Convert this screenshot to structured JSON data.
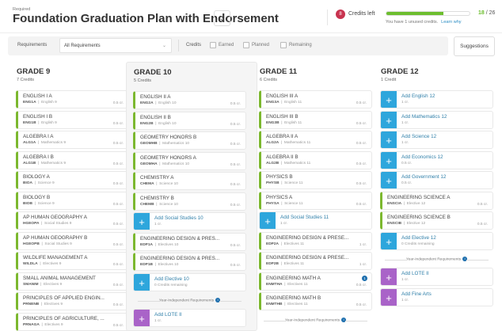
{
  "header": {
    "required_label": "Required",
    "title": "Foundation Graduation Plan with Endorsement",
    "credits_left_count": "8",
    "credits_left_label": "Credits left",
    "progress_earned": "18",
    "progress_total": "/ 26",
    "progress_percent": 69,
    "unused_text": "You have 1 unused credits.",
    "learn_why": "Learn why"
  },
  "filter": {
    "requirements_label": "Requirements",
    "requirements_value": "All Requirements",
    "credits_label": "Credits",
    "earned": "Earned",
    "planned": "Planned",
    "remaining": "Remaining",
    "suggestions": "Suggestions"
  },
  "colors": {
    "green": "#7cb82f",
    "blue": "#2ea6dc",
    "purple": "#a963c8",
    "badge": "#c8334f"
  },
  "grades": [
    {
      "title": "GRADE 9",
      "credits": "7 Credits",
      "items": [
        {
          "type": "course",
          "name": "ENGLISH I A",
          "code": "ENG1A",
          "subject": "English 9",
          "cr": "0.5 cr."
        },
        {
          "type": "course",
          "name": "ENGLISH I B",
          "code": "ENG1B",
          "subject": "English 9",
          "cr": "0.5 cr."
        },
        {
          "type": "course",
          "name": "ALGEBRA I A",
          "code": "ALG1A",
          "subject": "Mathematics 9",
          "cr": "0.5 cr."
        },
        {
          "type": "course",
          "name": "ALGEBRA I B",
          "code": "ALG1B",
          "subject": "Mathematics 9",
          "cr": "0.5 cr."
        },
        {
          "type": "course",
          "name": "BIOLOGY A",
          "code": "BIOA",
          "subject": "Science 9",
          "cr": "0.5 cr."
        },
        {
          "type": "course",
          "name": "BIOLOGY B",
          "code": "BIOB",
          "subject": "Science 9",
          "cr": "0.5 cr."
        },
        {
          "type": "course",
          "name": "AP HUMAN GEOGRAPHY A",
          "code": "HGEOPA",
          "subject": "Social Studies 9",
          "cr": "0.5 cr."
        },
        {
          "type": "course",
          "name": "AP HUMAN GEOGRAPHY B",
          "code": "HGEOPB",
          "subject": "Social Studies 9",
          "cr": "0.5 cr."
        },
        {
          "type": "course",
          "name": "WILDLIFE MANAGEMENT A",
          "code": "WILDLA",
          "subject": "Electives 9",
          "cr": "0.5 cr."
        },
        {
          "type": "course",
          "name": "SMALL ANIMAL MANAGEMENT",
          "code": "SMANIM",
          "subject": "Electives 9",
          "cr": "0.5 cr."
        },
        {
          "type": "course",
          "name": "PRINCIPLES OF APPLIED ENGIN...",
          "code": "PRNENB",
          "subject": "Electives 9",
          "cr": "0.5 cr."
        },
        {
          "type": "course",
          "name": "PRINCIPLES OF AGRICULTURE, ...",
          "code": "PRNAGA",
          "subject": "Electives 9",
          "cr": "0.5 cr."
        }
      ]
    },
    {
      "title": "GRADE 10",
      "credits": "5 Credits",
      "items": [
        {
          "type": "course",
          "name": "ENGLISH II A",
          "code": "ENG2A",
          "subject": "English 10",
          "cr": "0.5 cr."
        },
        {
          "type": "course",
          "name": "ENGLISH II B",
          "code": "ENG2B",
          "subject": "English 10",
          "cr": "0.5 cr."
        },
        {
          "type": "course",
          "name": "GEOMETRY HONORS B",
          "code": "GEOMHB",
          "subject": "Mathematics 10",
          "cr": "0.5 cr."
        },
        {
          "type": "course",
          "name": "GEOMETRY HONORS A",
          "code": "GEOMHA",
          "subject": "Mathematics 10",
          "cr": "0.5 cr."
        },
        {
          "type": "course",
          "name": "CHEMISTRY A",
          "code": "CHEMA",
          "subject": "Science 10",
          "cr": "0.5 cr."
        },
        {
          "type": "course",
          "name": "CHEMISTRY B",
          "code": "CHEMB",
          "subject": "Science 10",
          "cr": "0.5 cr."
        },
        {
          "type": "add",
          "name": "Add Social Studies 10",
          "sub": "1 cr."
        },
        {
          "type": "course",
          "name": "ENGINEERING DESIGN & PRES...",
          "code": "EDP1A",
          "subject": "Electives 10",
          "cr": "0.5 cr."
        },
        {
          "type": "course",
          "name": "ENGINEERING DESIGN & PRES...",
          "code": "EDP1B",
          "subject": "Electives 10",
          "cr": "0.5 cr."
        },
        {
          "type": "add",
          "name": "Add Elective 10",
          "sub": "0 Credits remaining"
        },
        {
          "type": "yir",
          "label": "Year-Independent Requirements"
        },
        {
          "type": "addp",
          "name": "Add LOTE II",
          "sub": "1 cr."
        }
      ]
    },
    {
      "title": "GRADE 11",
      "credits": "6 Credits",
      "items": [
        {
          "type": "course",
          "name": "ENGLISH III A",
          "code": "ENG3A",
          "subject": "English 11",
          "cr": "0.5 cr."
        },
        {
          "type": "course",
          "name": "ENGLISH III B",
          "code": "ENG3B",
          "subject": "English 11",
          "cr": "0.5 cr."
        },
        {
          "type": "course",
          "name": "ALGEBRA II A",
          "code": "ALG2A",
          "subject": "Mathematics 11",
          "cr": "0.5 cr."
        },
        {
          "type": "course",
          "name": "ALGEBRA II B",
          "code": "ALG2B",
          "subject": "Mathematics 11",
          "cr": "0.5 cr."
        },
        {
          "type": "course",
          "name": "PHYSICS B",
          "code": "PHYSB",
          "subject": "Science 11",
          "cr": "0.5 cr."
        },
        {
          "type": "course",
          "name": "PHYSICS A",
          "code": "PHYSA",
          "subject": "Science 11",
          "cr": "0.5 cr."
        },
        {
          "type": "add",
          "name": "Add Social Studies 11",
          "sub": "1 cr."
        },
        {
          "type": "course",
          "name": "ENGINEERING DESIGN & PRESE...",
          "code": "EDP2A",
          "subject": "Electives 11",
          "cr": "1 cr."
        },
        {
          "type": "course",
          "name": "ENGINEERING DESIGN & PRESE...",
          "code": "EDP2B",
          "subject": "Electives 11",
          "cr": "1 cr."
        },
        {
          "type": "course",
          "name": "ENGINEERING MATH A",
          "code": "ENMTHA",
          "subject": "Electives 11",
          "cr": "0.5 cr.",
          "info": "1"
        },
        {
          "type": "course",
          "name": "ENGINEERING MATH B",
          "code": "ENMTHB",
          "subject": "Electives 11",
          "cr": "0.5 cr."
        },
        {
          "type": "yir",
          "label": "Year-Independent Requirements"
        }
      ]
    },
    {
      "title": "GRADE 12",
      "credits": "1 Credit",
      "items": [
        {
          "type": "add",
          "name": "Add English 12",
          "sub": "1 cr."
        },
        {
          "type": "add",
          "name": "Add Mathematics 12",
          "sub": "1 cr."
        },
        {
          "type": "add",
          "name": "Add Science 12",
          "sub": "1 cr."
        },
        {
          "type": "add",
          "name": "Add Economics 12",
          "sub": "0.5 cr."
        },
        {
          "type": "add",
          "name": "Add Government 12",
          "sub": "0.5 cr."
        },
        {
          "type": "course",
          "name": "ENGINEERING SCIENCE A",
          "code": "ENSCIA",
          "subject": "Elective 12",
          "cr": "0.5 cr."
        },
        {
          "type": "course",
          "name": "ENGINEERING SCIENCE B",
          "code": "ENSCIB",
          "subject": "Elective 12",
          "cr": "0.5 cr."
        },
        {
          "type": "add",
          "name": "Add Elective 12",
          "sub": "0 Credits remaining"
        },
        {
          "type": "yir",
          "label": "Year-Independent Requirements"
        },
        {
          "type": "addp",
          "name": "Add LOTE II",
          "sub": "1 cr."
        },
        {
          "type": "addp",
          "name": "Add Fine Arts",
          "sub": "1 cr."
        }
      ]
    }
  ]
}
